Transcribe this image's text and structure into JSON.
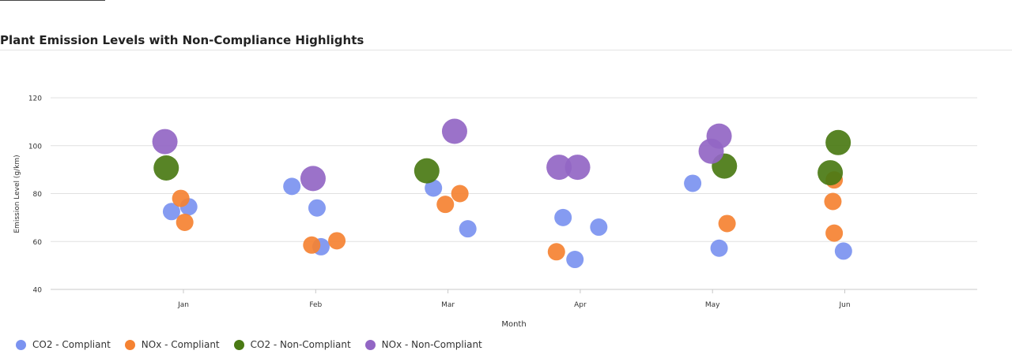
{
  "page": {
    "title": "Plant Emission Levels with Non-Compliance Highlights"
  },
  "chart_data": {
    "type": "scatter",
    "xlabel": "Month",
    "ylabel": "Emission Level (g/km)",
    "categories": [
      "Jan",
      "Feb",
      "Mar",
      "Apr",
      "May",
      "Jun"
    ],
    "ylim": [
      40,
      120
    ],
    "yticks": [
      40,
      60,
      80,
      100,
      120
    ],
    "grid": true,
    "legend_position": "bottom-left",
    "series": [
      {
        "name": "CO2 - Compliant",
        "color": "#7b93f0",
        "points": [
          {
            "month": "Jan",
            "offset": -0.09,
            "y": 72.5
          },
          {
            "month": "Jan",
            "offset": 0.04,
            "y": 74.5
          },
          {
            "month": "Feb",
            "offset": -0.18,
            "y": 83
          },
          {
            "month": "Feb",
            "offset": 0.01,
            "y": 74
          },
          {
            "month": "Feb",
            "offset": 0.04,
            "y": 57.8
          },
          {
            "month": "Mar",
            "offset": -0.11,
            "y": 82.3
          },
          {
            "month": "Mar",
            "offset": 0.15,
            "y": 65.3
          },
          {
            "month": "Apr",
            "offset": -0.13,
            "y": 70
          },
          {
            "month": "Apr",
            "offset": -0.04,
            "y": 52.5
          },
          {
            "month": "Apr",
            "offset": 0.14,
            "y": 66
          },
          {
            "month": "May",
            "offset": -0.15,
            "y": 84.3
          },
          {
            "month": "May",
            "offset": 0.05,
            "y": 57.2
          },
          {
            "month": "Jun",
            "offset": -0.01,
            "y": 56
          }
        ]
      },
      {
        "name": "NOx - Compliant",
        "color": "#f58232",
        "points": [
          {
            "month": "Jan",
            "offset": -0.02,
            "y": 78
          },
          {
            "month": "Jan",
            "offset": 0.01,
            "y": 68
          },
          {
            "month": "Feb",
            "offset": -0.03,
            "y": 58.5
          },
          {
            "month": "Feb",
            "offset": 0.16,
            "y": 60.3
          },
          {
            "month": "Mar",
            "offset": -0.02,
            "y": 75.5
          },
          {
            "month": "Mar",
            "offset": 0.09,
            "y": 80
          },
          {
            "month": "Apr",
            "offset": -0.18,
            "y": 55.7
          },
          {
            "month": "May",
            "offset": 0.11,
            "y": 67.5
          },
          {
            "month": "Jun",
            "offset": -0.09,
            "y": 76.7
          },
          {
            "month": "Jun",
            "offset": -0.08,
            "y": 85.7
          },
          {
            "month": "Jun",
            "offset": -0.08,
            "y": 63.5
          }
        ]
      },
      {
        "name": "CO2 - Non-Compliant",
        "color": "#4a7a14",
        "points": [
          {
            "month": "Jan",
            "offset": -0.13,
            "y": 90.7
          },
          {
            "month": "Mar",
            "offset": -0.16,
            "y": 89.5
          },
          {
            "month": "May",
            "offset": 0.09,
            "y": 91.5
          },
          {
            "month": "Jun",
            "offset": -0.11,
            "y": 88.7
          },
          {
            "month": "Jun",
            "offset": -0.05,
            "y": 101.3
          }
        ]
      },
      {
        "name": "NOx - Non-Compliant",
        "color": "#9266c4",
        "points": [
          {
            "month": "Jan",
            "offset": -0.14,
            "y": 101.7
          },
          {
            "month": "Feb",
            "offset": -0.02,
            "y": 86.3
          },
          {
            "month": "Mar",
            "offset": 0.05,
            "y": 106
          },
          {
            "month": "Apr",
            "offset": -0.16,
            "y": 91
          },
          {
            "month": "Apr",
            "offset": -0.02,
            "y": 91
          },
          {
            "month": "May",
            "offset": -0.01,
            "y": 97.7
          },
          {
            "month": "May",
            "offset": 0.05,
            "y": 104
          }
        ]
      }
    ]
  }
}
